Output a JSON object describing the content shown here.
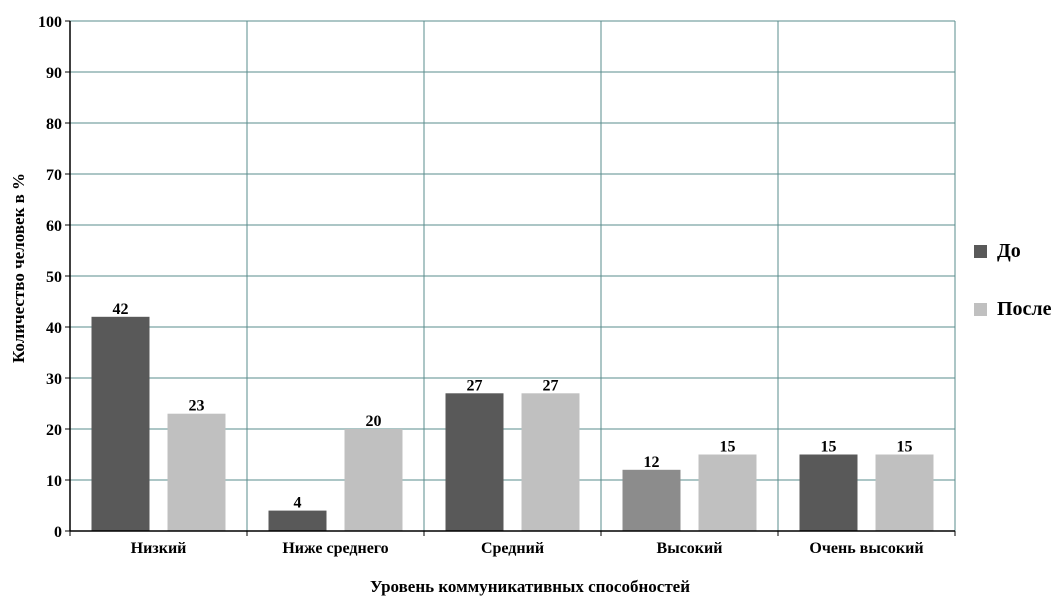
{
  "chart_data": {
    "type": "bar",
    "title": "",
    "xlabel": "Уровень коммуникативных способностей",
    "ylabel": "Количество человек в %",
    "categories": [
      "Низкий",
      "Ниже среднего",
      "Средний",
      "Высокий",
      "Очень высокий"
    ],
    "series": [
      {
        "name": "До",
        "values": [
          42,
          4,
          27,
          12,
          15
        ],
        "color": "#595959"
      },
      {
        "name": "После",
        "values": [
          23,
          20,
          27,
          15,
          15
        ],
        "color": "#c0c0c0"
      }
    ],
    "ylim": [
      0,
      100
    ],
    "yticks": [
      0,
      10,
      20,
      30,
      40,
      50,
      60,
      70,
      80,
      90,
      100
    ],
    "data_labels": true,
    "grid": true,
    "legend_position": "right",
    "bar_colors_override": {
      "series": 0,
      "category": 3,
      "color": "#8c8c8c"
    }
  }
}
